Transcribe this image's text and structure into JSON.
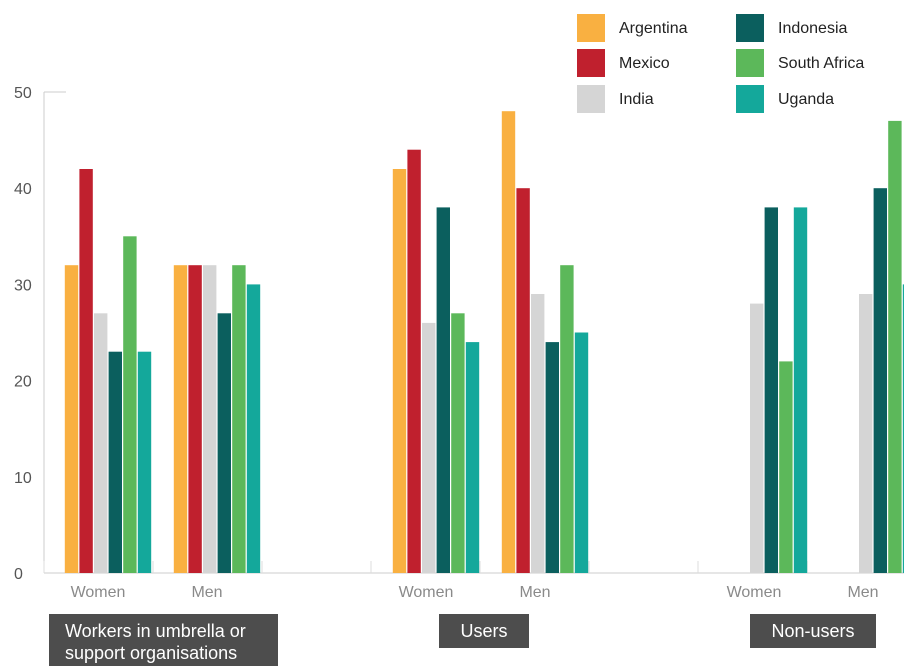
{
  "chart_data": {
    "type": "bar",
    "ylim": [
      0,
      50
    ],
    "yticks": [
      0,
      10,
      20,
      30,
      40,
      50
    ],
    "grid": false,
    "legend_position": "top-right",
    "groups": [
      {
        "label": "Workers in umbrella or support organisations",
        "label_lines": [
          "Workers in umbrella or",
          "support organisations"
        ],
        "categories": [
          "Women",
          "Men"
        ]
      },
      {
        "label": "Users",
        "label_lines": [
          "Users"
        ],
        "categories": [
          "Women",
          "Men"
        ]
      },
      {
        "label": "Non-users",
        "label_lines": [
          "Non-users"
        ],
        "categories": [
          "Women",
          "Men"
        ]
      }
    ],
    "categories": [
      "Women",
      "Men",
      "Women",
      "Men",
      "Women",
      "Men"
    ],
    "series": [
      {
        "name": "Argentina",
        "color": "#f9b041",
        "values": [
          32,
          32,
          42,
          48,
          null,
          null
        ]
      },
      {
        "name": "Mexico",
        "color": "#c0202e",
        "values": [
          42,
          32,
          44,
          40,
          null,
          null
        ]
      },
      {
        "name": "India",
        "color": "#d5d5d5",
        "values": [
          27,
          32,
          26,
          29,
          28,
          29
        ]
      },
      {
        "name": "Indonesia",
        "color": "#0b5f5e",
        "values": [
          23,
          27,
          38,
          24,
          38,
          40
        ]
      },
      {
        "name": "South Africa",
        "color": "#5cb85a",
        "values": [
          35,
          32,
          27,
          32,
          22,
          47
        ]
      },
      {
        "name": "Uganda",
        "color": "#14a89b",
        "values": [
          23,
          30,
          24,
          25,
          38,
          30
        ]
      }
    ]
  }
}
